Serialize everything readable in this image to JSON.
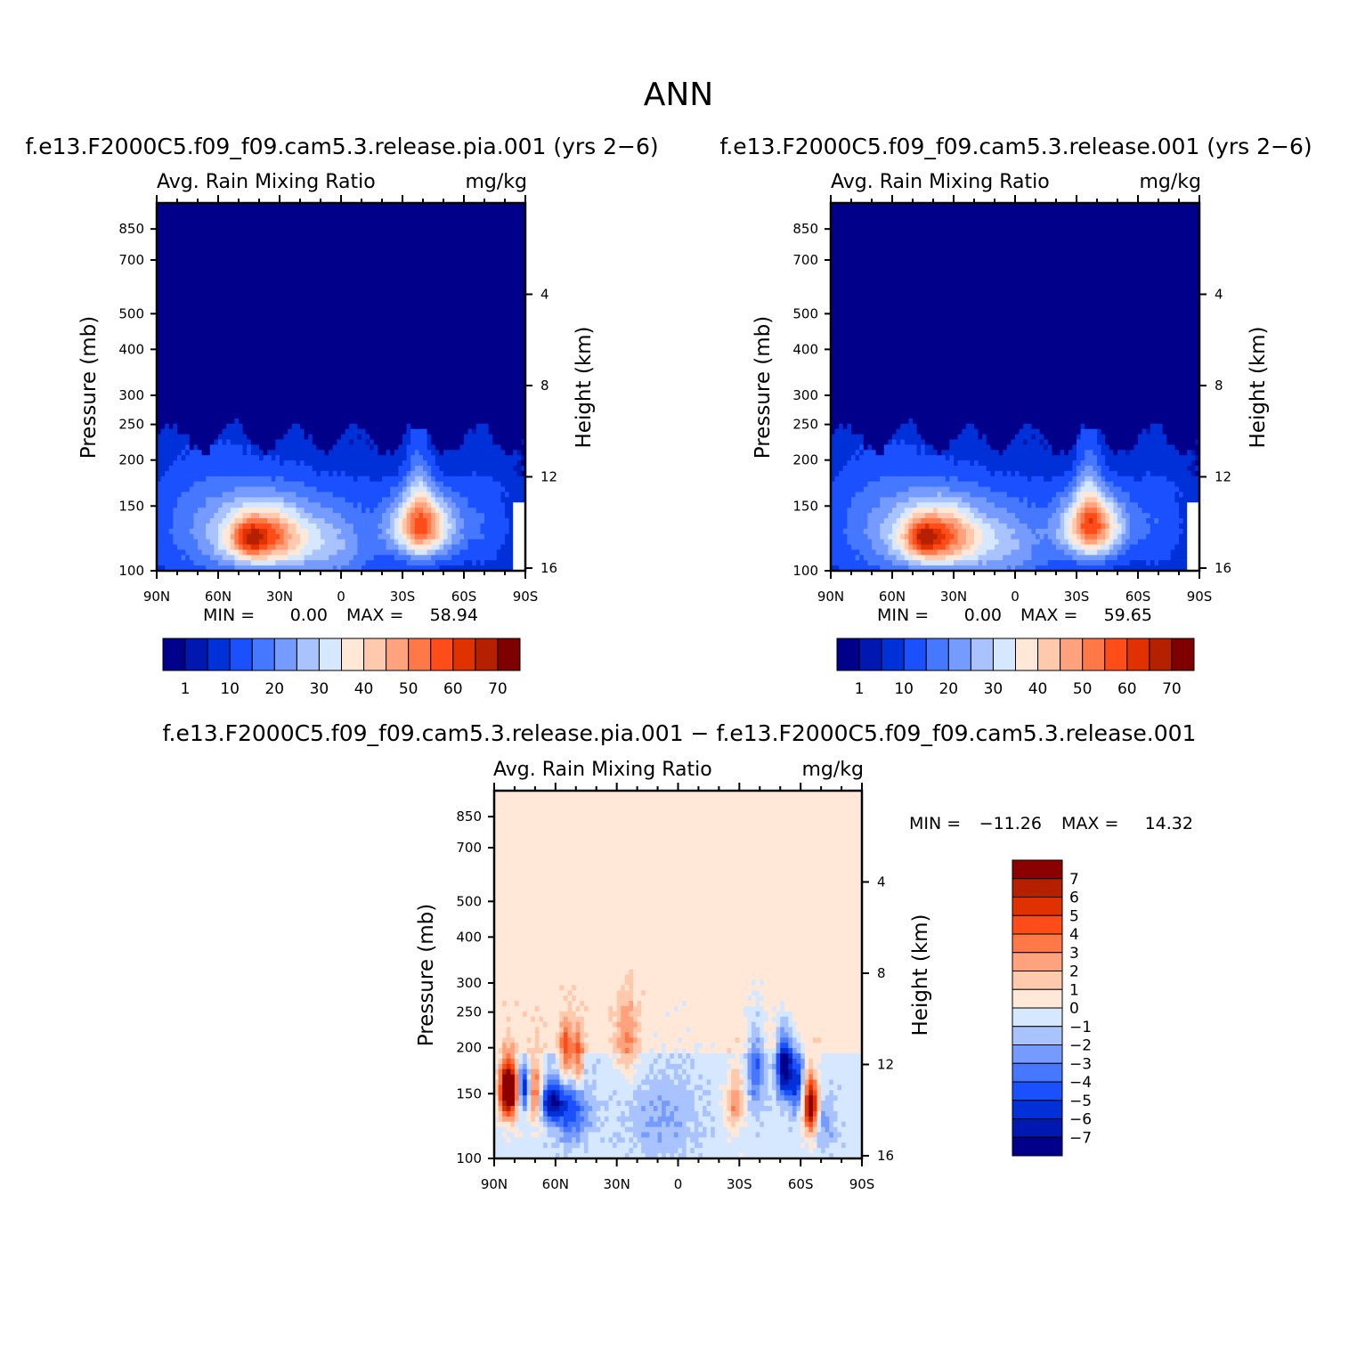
{
  "figure": {
    "title": "ANN"
  },
  "palettes": {
    "abs": [
      "#00008b",
      "#0018b0",
      "#0030d8",
      "#1a50ff",
      "#4577ff",
      "#769bff",
      "#a9c3ff",
      "#d6e8ff",
      "#ffe8d8",
      "#ffc9ad",
      "#ffa27d",
      "#ff7848",
      "#ff4d1a",
      "#e03200",
      "#b52000",
      "#7f0000"
    ],
    "diff": [
      "#00008b",
      "#0018b0",
      "#0030d8",
      "#1a50ff",
      "#4577ff",
      "#769bff",
      "#a9c3ff",
      "#d6e8ff",
      "#ffe8d8",
      "#ffc9ad",
      "#ffa27d",
      "#ff7848",
      "#ff4d1a",
      "#e03200",
      "#b52000",
      "#8b0000"
    ]
  },
  "chart_data": [
    {
      "type": "heatmap",
      "id": "case",
      "title": "f.e13.F2000C5.f09_f09.cam5.3.release.pia.001 (yrs 2−6)",
      "left_label": "Avg. Rain Mixing Ratio",
      "right_label": "mg/kg",
      "xlabel": "",
      "ylabel": "Pressure (mb)",
      "ylabel_right": "Height (km)",
      "xlim": [
        90,
        -90
      ],
      "ylim": [
        1000,
        100
      ],
      "x_ticks": [
        {
          "v": 90,
          "l": "90N"
        },
        {
          "v": 60,
          "l": "60N"
        },
        {
          "v": 30,
          "l": "30N"
        },
        {
          "v": 0,
          "l": "0"
        },
        {
          "v": -30,
          "l": "30S"
        },
        {
          "v": -60,
          "l": "60S"
        },
        {
          "v": -90,
          "l": "90S"
        }
      ],
      "y_ticks": [
        {
          "v": 100,
          "l": "100"
        },
        {
          "v": 150,
          "l": "150"
        },
        {
          "v": 200,
          "l": "200"
        },
        {
          "v": 250,
          "l": "250"
        },
        {
          "v": 300,
          "l": "300"
        },
        {
          "v": 400,
          "l": "400"
        },
        {
          "v": 500,
          "l": "500"
        },
        {
          "v": 700,
          "l": "700"
        },
        {
          "v": 850,
          "l": "850"
        }
      ],
      "height_ticks": [
        {
          "v": 16,
          "l": "16"
        },
        {
          "v": 12,
          "l": "12"
        },
        {
          "v": 8,
          "l": "8"
        },
        {
          "v": 4,
          "l": "4"
        }
      ],
      "min_label": "MIN =",
      "min_value": "0.00",
      "max_label": "MAX =",
      "max_value": "58.94",
      "levels": [
        0.5,
        1,
        5,
        10,
        15,
        20,
        25,
        30,
        35,
        40,
        45,
        50,
        55,
        60,
        65
      ],
      "colorbar_labels": [
        "1",
        "10",
        "20",
        "30",
        "40",
        "50",
        "60",
        "70"
      ],
      "field": {
        "background": 0,
        "blobs": [
          {
            "lat": 38,
            "p": 810,
            "slat": 14,
            "sp": 110,
            "amp": 42
          },
          {
            "lat": 45,
            "p": 820,
            "slat": 5,
            "sp": 60,
            "amp": 14
          },
          {
            "lat": -40,
            "p": 760,
            "slat": 11,
            "sp": 110,
            "amp": 45
          },
          {
            "lat": -38,
            "p": 600,
            "slat": 4,
            "sp": 150,
            "amp": 12
          },
          {
            "lat": 5,
            "p": 880,
            "slat": 16,
            "sp": 150,
            "amp": 16
          },
          {
            "lat": 65,
            "p": 760,
            "slat": 22,
            "sp": 220,
            "amp": 12
          },
          {
            "lat": -70,
            "p": 740,
            "slat": 10,
            "sp": 180,
            "amp": 8
          },
          {
            "lat": 15,
            "p": 700,
            "slat": 30,
            "sp": 160,
            "amp": 6
          }
        ],
        "floor": {
          "p": 560,
          "value": 0.8
        },
        "top_edge": 440,
        "south_cut": {
          "lat": -84,
          "p": 660
        }
      }
    },
    {
      "type": "heatmap",
      "id": "control",
      "title": "f.e13.F2000C5.f09_f09.cam5.3.release.001 (yrs 2−6)",
      "left_label": "Avg. Rain Mixing Ratio",
      "right_label": "mg/kg",
      "xlabel": "",
      "ylabel": "Pressure (mb)",
      "ylabel_right": "Height (km)",
      "xlim": [
        90,
        -90
      ],
      "ylim": [
        1000,
        100
      ],
      "x_ticks": [
        {
          "v": 90,
          "l": "90N"
        },
        {
          "v": 60,
          "l": "60N"
        },
        {
          "v": 30,
          "l": "30N"
        },
        {
          "v": 0,
          "l": "0"
        },
        {
          "v": -30,
          "l": "30S"
        },
        {
          "v": -60,
          "l": "60S"
        },
        {
          "v": -90,
          "l": "90S"
        }
      ],
      "y_ticks": [
        {
          "v": 100,
          "l": "100"
        },
        {
          "v": 150,
          "l": "150"
        },
        {
          "v": 200,
          "l": "200"
        },
        {
          "v": 250,
          "l": "250"
        },
        {
          "v": 300,
          "l": "300"
        },
        {
          "v": 400,
          "l": "400"
        },
        {
          "v": 500,
          "l": "500"
        },
        {
          "v": 700,
          "l": "700"
        },
        {
          "v": 850,
          "l": "850"
        }
      ],
      "height_ticks": [
        {
          "v": 16,
          "l": "16"
        },
        {
          "v": 12,
          "l": "12"
        },
        {
          "v": 8,
          "l": "8"
        },
        {
          "v": 4,
          "l": "4"
        }
      ],
      "min_label": "MIN =",
      "min_value": "0.00",
      "max_label": "MAX =",
      "max_value": "59.65",
      "levels": [
        0.5,
        1,
        5,
        10,
        15,
        20,
        25,
        30,
        35,
        40,
        45,
        50,
        55,
        60,
        65
      ],
      "colorbar_labels": [
        "1",
        "10",
        "20",
        "30",
        "40",
        "50",
        "60",
        "70"
      ],
      "field": {
        "background": 0,
        "blobs": [
          {
            "lat": 38,
            "p": 810,
            "slat": 14,
            "sp": 110,
            "amp": 43
          },
          {
            "lat": 45,
            "p": 820,
            "slat": 5,
            "sp": 60,
            "amp": 14
          },
          {
            "lat": -38,
            "p": 760,
            "slat": 11,
            "sp": 110,
            "amp": 46
          },
          {
            "lat": -36,
            "p": 600,
            "slat": 4,
            "sp": 150,
            "amp": 12
          },
          {
            "lat": 5,
            "p": 880,
            "slat": 16,
            "sp": 150,
            "amp": 16
          },
          {
            "lat": 65,
            "p": 760,
            "slat": 22,
            "sp": 220,
            "amp": 12
          },
          {
            "lat": -70,
            "p": 740,
            "slat": 10,
            "sp": 180,
            "amp": 8
          },
          {
            "lat": 15,
            "p": 700,
            "slat": 30,
            "sp": 160,
            "amp": 6
          }
        ],
        "floor": {
          "p": 560,
          "value": 0.8
        },
        "top_edge": 440,
        "south_cut": {
          "lat": -84,
          "p": 660
        }
      }
    },
    {
      "type": "heatmap",
      "id": "difference",
      "title": "f.e13.F2000C5.f09_f09.cam5.3.release.pia.001 − f.e13.F2000C5.f09_f09.cam5.3.release.001",
      "left_label": "Avg. Rain Mixing Ratio",
      "right_label": "mg/kg",
      "xlabel": "",
      "ylabel": "Pressure (mb)",
      "ylabel_right": "Height (km)",
      "xlim": [
        90,
        -90
      ],
      "ylim": [
        1000,
        100
      ],
      "x_ticks": [
        {
          "v": 90,
          "l": "90N"
        },
        {
          "v": 60,
          "l": "60N"
        },
        {
          "v": 30,
          "l": "30N"
        },
        {
          "v": 0,
          "l": "0"
        },
        {
          "v": -30,
          "l": "30S"
        },
        {
          "v": -60,
          "l": "60S"
        },
        {
          "v": -90,
          "l": "90S"
        }
      ],
      "y_ticks": [
        {
          "v": 100,
          "l": "100"
        },
        {
          "v": 150,
          "l": "150"
        },
        {
          "v": 200,
          "l": "200"
        },
        {
          "v": 250,
          "l": "250"
        },
        {
          "v": 300,
          "l": "300"
        },
        {
          "v": 400,
          "l": "400"
        },
        {
          "v": 500,
          "l": "500"
        },
        {
          "v": 700,
          "l": "700"
        },
        {
          "v": 850,
          "l": "850"
        }
      ],
      "height_ticks": [
        {
          "v": 16,
          "l": "16"
        },
        {
          "v": 12,
          "l": "12"
        },
        {
          "v": 8,
          "l": "8"
        },
        {
          "v": 4,
          "l": "4"
        }
      ],
      "min_label": "MIN =",
      "min_value": "−11.26",
      "max_label": "MAX =",
      "max_value": "14.32",
      "levels": [
        -7,
        -6,
        -5,
        -4,
        -3,
        -2,
        -1,
        0,
        1,
        2,
        3,
        4,
        5,
        6,
        7
      ],
      "colorbar_labels": [
        "7",
        "6",
        "5",
        "4",
        "3",
        "2",
        "1",
        "0",
        "−1",
        "−2",
        "−3",
        "−4",
        "−5",
        "−6",
        "−7"
      ],
      "field": {
        "background": 0.5,
        "blobs": [
          {
            "lat": 83,
            "p": 650,
            "slat": 3,
            "sp": 80,
            "amp": 12
          },
          {
            "lat": 75,
            "p": 640,
            "slat": 2,
            "sp": 60,
            "amp": -6
          },
          {
            "lat": 70,
            "p": 660,
            "slat": 2.5,
            "sp": 90,
            "amp": 5
          },
          {
            "lat": 62,
            "p": 700,
            "slat": 4,
            "sp": 60,
            "amp": -6
          },
          {
            "lat": 55,
            "p": 520,
            "slat": 2,
            "sp": 70,
            "amp": 5
          },
          {
            "lat": 49,
            "p": 540,
            "slat": 2,
            "sp": 70,
            "amp": 5
          },
          {
            "lat": 52,
            "p": 740,
            "slat": 6,
            "sp": 110,
            "amp": -4
          },
          {
            "lat": 25,
            "p": 480,
            "slat": 4,
            "sp": 90,
            "amp": 2.5
          },
          {
            "lat": 8,
            "p": 800,
            "slat": 12,
            "sp": 150,
            "amp": -1.6
          },
          {
            "lat": -28,
            "p": 700,
            "slat": 3,
            "sp": 90,
            "amp": 3.5
          },
          {
            "lat": -38,
            "p": 560,
            "slat": 3,
            "sp": 110,
            "amp": -3.5
          },
          {
            "lat": -52,
            "p": 560,
            "slat": 2.5,
            "sp": 80,
            "amp": -8
          },
          {
            "lat": -58,
            "p": 620,
            "slat": 2.5,
            "sp": 80,
            "amp": -5
          },
          {
            "lat": -65,
            "p": 720,
            "slat": 2.5,
            "sp": 90,
            "amp": 9
          },
          {
            "lat": -72,
            "p": 800,
            "slat": 4,
            "sp": 80,
            "amp": -2
          }
        ],
        "floor": {
          "p": 520,
          "value": -0.5
        },
        "top_edge": 350
      }
    }
  ]
}
